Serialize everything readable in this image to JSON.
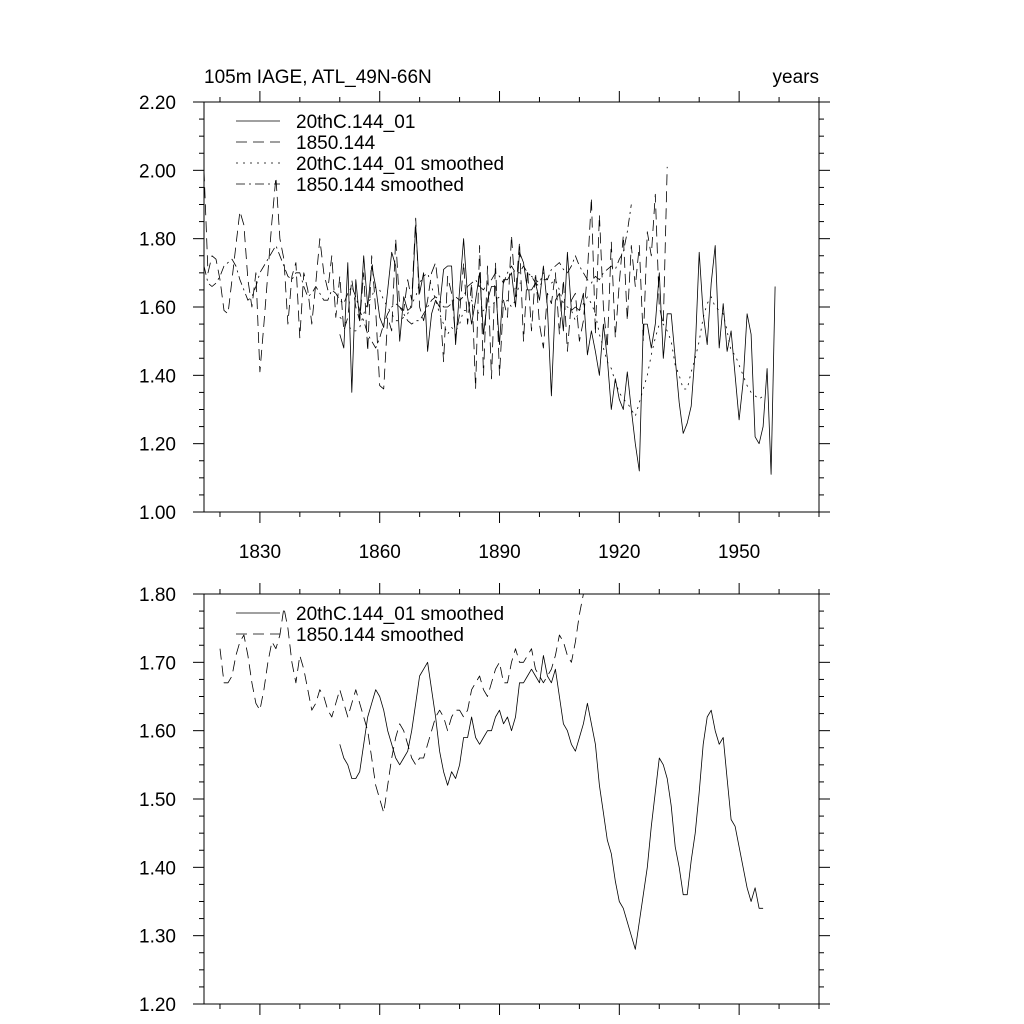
{
  "chart_data": [
    {
      "type": "line",
      "title": "105m IAGE, ATL_49N-66N",
      "units_label": "years",
      "xlabel": "",
      "ylabel": "",
      "xlim": [
        1816,
        1970
      ],
      "ylim": [
        1.0,
        2.2
      ],
      "yticks": [
        1.0,
        1.2,
        1.4,
        1.6,
        1.8,
        2.0,
        2.2
      ],
      "ytick_labels": [
        "1.00",
        "1.20",
        "1.40",
        "1.60",
        "1.80",
        "2.00",
        "2.20"
      ],
      "xticks": [
        1830,
        1860,
        1890,
        1920,
        1950
      ],
      "xtick_labels": [
        "1830",
        "1860",
        "1890",
        "1920",
        "1950"
      ],
      "legend_position": "top-left",
      "series": [
        {
          "name": "20thC.144_01",
          "dash": "solid",
          "x0": 1850,
          "values": [
            1.52,
            1.48,
            1.73,
            1.35,
            1.68,
            1.56,
            1.75,
            1.6,
            1.72,
            1.66,
            1.57,
            1.54,
            1.65,
            1.76,
            1.72,
            1.5,
            1.63,
            1.59,
            1.6,
            1.84,
            1.64,
            1.7,
            1.47,
            1.58,
            1.62,
            1.6,
            1.71,
            1.72,
            1.72,
            1.49,
            1.65,
            1.8,
            1.63,
            1.55,
            1.62,
            1.7,
            1.52,
            1.62,
            1.66,
            1.66,
            1.49,
            1.68,
            1.68,
            1.7,
            1.6,
            1.76,
            1.73,
            1.65,
            1.65,
            1.67,
            1.62,
            1.72,
            1.6,
            1.34,
            1.62,
            1.64,
            1.53,
            1.76,
            1.59,
            1.6,
            1.59,
            1.64,
            1.46,
            1.53,
            1.47,
            1.4,
            1.55,
            1.45,
            1.3,
            1.39,
            1.33,
            1.3,
            1.41,
            1.3,
            1.2,
            1.12,
            1.55,
            1.55,
            1.48,
            1.55,
            1.7,
            1.45,
            1.58,
            1.58,
            1.45,
            1.32,
            1.23,
            1.26,
            1.31,
            1.47,
            1.76,
            1.58,
            1.49,
            1.67,
            1.78,
            1.48,
            1.61,
            1.47,
            1.53,
            1.4,
            1.27,
            1.38,
            1.58,
            1.52,
            1.22,
            1.2,
            1.25,
            1.42,
            1.11,
            1.66
          ]
        },
        {
          "name": "1850.144",
          "dash": "long-dash",
          "x0": 1816,
          "values": [
            2.0,
            1.7,
            1.75,
            1.74,
            1.68,
            1.59,
            1.58,
            1.68,
            1.78,
            1.88,
            1.84,
            1.68,
            1.6,
            1.7,
            1.41,
            1.55,
            1.7,
            1.85,
            1.98,
            1.8,
            1.74,
            1.55,
            1.69,
            1.73,
            1.51,
            1.7,
            1.65,
            1.55,
            1.67,
            1.8,
            1.7,
            1.65,
            1.75,
            1.57,
            1.69,
            1.53,
            1.57,
            1.68,
            1.6,
            1.56,
            1.7,
            1.47,
            1.75,
            1.59,
            1.37,
            1.36,
            1.57,
            1.53,
            1.8,
            1.6,
            1.59,
            1.68,
            1.62,
            1.86,
            1.6,
            1.56,
            1.62,
            1.7,
            1.73,
            1.62,
            1.44,
            1.69,
            1.64,
            1.51,
            1.58,
            1.73,
            1.55,
            1.67,
            1.36,
            1.78,
            1.4,
            1.72,
            1.39,
            1.73,
            1.4,
            1.62,
            1.57,
            1.81,
            1.63,
            1.79,
            1.5,
            1.71,
            1.53,
            1.7,
            1.55,
            1.48,
            1.64,
            1.61,
            1.7,
            1.52,
            1.68,
            1.47,
            1.62,
            1.64,
            1.5,
            1.56,
            1.7,
            1.92,
            1.52,
            1.87,
            1.6,
            1.48,
            1.79,
            1.51,
            1.67,
            1.81,
            1.56,
            1.78,
            1.66,
            1.78,
            1.5,
            1.82,
            1.75,
            1.93,
            1.6,
            1.55,
            2.01
          ]
        },
        {
          "name": "20thC.144_01 smoothed",
          "dash": "dotted",
          "x0": 1850,
          "values": [
            1.57,
            1.56,
            1.55,
            1.53,
            1.53,
            1.54,
            1.58,
            1.61,
            1.63,
            1.66,
            1.65,
            1.62,
            1.6,
            1.58,
            1.56,
            1.56,
            1.57,
            1.58,
            1.61,
            1.63,
            1.67,
            1.69,
            1.7,
            1.66,
            1.62,
            1.58,
            1.55,
            1.52,
            1.54,
            1.53,
            1.55,
            1.59,
            1.59,
            1.62,
            1.59,
            1.58,
            1.59,
            1.6,
            1.6,
            1.62,
            1.63,
            1.61,
            1.62,
            1.6,
            1.62,
            1.67,
            1.67,
            1.68,
            1.69,
            1.68,
            1.67,
            1.7,
            1.68,
            1.67,
            1.68,
            1.65,
            1.61,
            1.6,
            1.59,
            1.56,
            1.59,
            1.61,
            1.63,
            1.61,
            1.58,
            1.52,
            1.48,
            1.44,
            1.42,
            1.38,
            1.35,
            1.33,
            1.32,
            1.3,
            1.28,
            1.32,
            1.36,
            1.4,
            1.46,
            1.51,
            1.55,
            1.55,
            1.53,
            1.5,
            1.43,
            1.4,
            1.36,
            1.36,
            1.41,
            1.45,
            1.5,
            1.57,
            1.61,
            1.63,
            1.6,
            1.59,
            1.58,
            1.53,
            1.47,
            1.46,
            1.43,
            1.4,
            1.37,
            1.35,
            1.34,
            1.33,
            1.34
          ]
        },
        {
          "name": "1850.144 smoothed",
          "dash": "dash-dot",
          "x0": 1816,
          "values": [
            1.72,
            1.67,
            1.66,
            1.67,
            1.69,
            1.72,
            1.73,
            1.74,
            1.72,
            1.68,
            1.65,
            1.62,
            1.63,
            1.66,
            1.7,
            1.72,
            1.74,
            1.76,
            1.78,
            1.75,
            1.72,
            1.69,
            1.68,
            1.7,
            1.7,
            1.66,
            1.63,
            1.64,
            1.66,
            1.64,
            1.62,
            1.62,
            1.65,
            1.64,
            1.62,
            1.61,
            1.64,
            1.66,
            1.63,
            1.59,
            1.56,
            1.52,
            1.5,
            1.48,
            1.51,
            1.55,
            1.58,
            1.6,
            1.61,
            1.6,
            1.58,
            1.56,
            1.55,
            1.56,
            1.56,
            1.58,
            1.6,
            1.62,
            1.63,
            1.62,
            1.6,
            1.6,
            1.61,
            1.63,
            1.62,
            1.63,
            1.66,
            1.67,
            1.68,
            1.66,
            1.65,
            1.67,
            1.68,
            1.7,
            1.69,
            1.67,
            1.7,
            1.72,
            1.7,
            1.7,
            1.72,
            1.7,
            1.69,
            1.67,
            1.66,
            1.68,
            1.68,
            1.71,
            1.72,
            1.73,
            1.71,
            1.7,
            1.72,
            1.75,
            1.72,
            1.7,
            1.68,
            1.67,
            1.69,
            1.68,
            1.7,
            1.71,
            1.72,
            1.71,
            1.74,
            1.76,
            1.82,
            1.9
          ]
        }
      ]
    },
    {
      "type": "line",
      "title": "",
      "xlabel": "",
      "ylabel": "",
      "xlim": [
        1816,
        1970
      ],
      "ylim": [
        1.2,
        1.8
      ],
      "yticks": [
        1.2,
        1.3,
        1.4,
        1.5,
        1.6,
        1.7,
        1.8
      ],
      "ytick_labels": [
        "1.20",
        "1.30",
        "1.40",
        "1.50",
        "1.60",
        "1.70",
        "1.80"
      ],
      "xticks": [
        1830,
        1860,
        1890,
        1920,
        1950
      ],
      "xtick_labels": [],
      "legend_position": "top-left",
      "series": [
        {
          "name": "20thC.144_01 smoothed",
          "dash": "solid",
          "x0": 1850,
          "values": [
            1.58,
            1.56,
            1.55,
            1.53,
            1.53,
            1.54,
            1.58,
            1.62,
            1.64,
            1.66,
            1.65,
            1.63,
            1.6,
            1.58,
            1.56,
            1.55,
            1.56,
            1.57,
            1.6,
            1.64,
            1.68,
            1.69,
            1.7,
            1.66,
            1.62,
            1.57,
            1.54,
            1.52,
            1.54,
            1.53,
            1.55,
            1.59,
            1.59,
            1.62,
            1.59,
            1.58,
            1.59,
            1.6,
            1.6,
            1.62,
            1.63,
            1.61,
            1.62,
            1.6,
            1.62,
            1.67,
            1.67,
            1.68,
            1.69,
            1.68,
            1.67,
            1.71,
            1.68,
            1.67,
            1.69,
            1.65,
            1.61,
            1.6,
            1.58,
            1.57,
            1.59,
            1.61,
            1.64,
            1.61,
            1.58,
            1.52,
            1.48,
            1.44,
            1.42,
            1.38,
            1.35,
            1.34,
            1.32,
            1.3,
            1.28,
            1.32,
            1.36,
            1.4,
            1.46,
            1.51,
            1.56,
            1.55,
            1.53,
            1.49,
            1.43,
            1.4,
            1.36,
            1.36,
            1.41,
            1.45,
            1.51,
            1.58,
            1.62,
            1.63,
            1.6,
            1.58,
            1.59,
            1.53,
            1.47,
            1.46,
            1.43,
            1.4,
            1.37,
            1.35,
            1.37,
            1.34,
            1.34
          ]
        },
        {
          "name": "1850.144 smoothed",
          "dash": "long-dash",
          "x0": 1820,
          "values": [
            1.72,
            1.67,
            1.67,
            1.68,
            1.71,
            1.73,
            1.74,
            1.71,
            1.67,
            1.64,
            1.63,
            1.66,
            1.7,
            1.73,
            1.72,
            1.74,
            1.78,
            1.75,
            1.7,
            1.67,
            1.71,
            1.69,
            1.66,
            1.63,
            1.64,
            1.66,
            1.65,
            1.63,
            1.62,
            1.64,
            1.66,
            1.64,
            1.62,
            1.64,
            1.66,
            1.64,
            1.62,
            1.6,
            1.56,
            1.52,
            1.5,
            1.48,
            1.52,
            1.56,
            1.59,
            1.61,
            1.6,
            1.58,
            1.56,
            1.55,
            1.56,
            1.56,
            1.58,
            1.6,
            1.62,
            1.63,
            1.62,
            1.6,
            1.62,
            1.63,
            1.63,
            1.62,
            1.63,
            1.66,
            1.67,
            1.68,
            1.66,
            1.65,
            1.67,
            1.69,
            1.7,
            1.67,
            1.67,
            1.7,
            1.72,
            1.7,
            1.7,
            1.71,
            1.72,
            1.69,
            1.68,
            1.67,
            1.68,
            1.69,
            1.71,
            1.74,
            1.73,
            1.71,
            1.7,
            1.73,
            1.77,
            1.8
          ]
        }
      ]
    }
  ]
}
